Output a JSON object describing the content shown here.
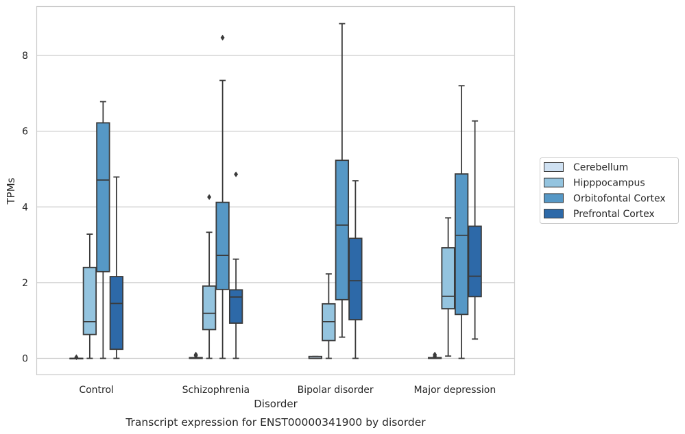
{
  "chart_data": {
    "type": "box",
    "caption": "Transcript expression for ENST00000341900 by disorder",
    "xlabel": "Disorder",
    "ylabel": "TPMs",
    "ylim": [
      -0.45,
      9.3
    ],
    "yticks": [
      0,
      2,
      4,
      6,
      8
    ],
    "grid": "horizontal",
    "legend_position": "right",
    "categories": [
      "Control",
      "Schizophrenia",
      "Bipolar disorder",
      "Major depression"
    ],
    "series": [
      {
        "name": "Cerebellum",
        "color": "#cfe1f2",
        "boxes": [
          {
            "whislo": 0,
            "q1": 0,
            "med": 0,
            "q3": 0,
            "whishi": 0,
            "fliers": [
              0.03
            ]
          },
          {
            "whislo": 0,
            "q1": 0,
            "med": 0,
            "q3": 0.02,
            "whishi": 0.02,
            "fliers": [
              0.07,
              0.1
            ]
          },
          {
            "whislo": 0,
            "q1": 0,
            "med": 0,
            "q3": 0.05,
            "whishi": 0.05,
            "fliers": []
          },
          {
            "whislo": 0,
            "q1": 0,
            "med": 0,
            "q3": 0.02,
            "whishi": 0.02,
            "fliers": [
              0.06,
              0.1
            ]
          }
        ]
      },
      {
        "name": "Hipppocampus",
        "color": "#94c4df",
        "boxes": [
          {
            "whislo": 0,
            "q1": 0.63,
            "med": 0.97,
            "q3": 2.4,
            "whishi": 3.28,
            "fliers": []
          },
          {
            "whislo": 0,
            "q1": 0.76,
            "med": 1.19,
            "q3": 1.91,
            "whishi": 3.33,
            "fliers": [
              4.26
            ]
          },
          {
            "whislo": 0,
            "q1": 0.47,
            "med": 0.97,
            "q3": 1.44,
            "whishi": 2.23,
            "fliers": []
          },
          {
            "whislo": 0.06,
            "q1": 1.31,
            "med": 1.64,
            "q3": 2.92,
            "whishi": 3.71,
            "fliers": []
          }
        ]
      },
      {
        "name": "Orbitofontal Cortex",
        "color": "#5698c6",
        "boxes": [
          {
            "whislo": 0,
            "q1": 2.29,
            "med": 4.71,
            "q3": 6.22,
            "whishi": 6.78,
            "fliers": []
          },
          {
            "whislo": 0,
            "q1": 1.82,
            "med": 2.72,
            "q3": 4.12,
            "whishi": 7.34,
            "fliers": [
              8.47
            ]
          },
          {
            "whislo": 0.56,
            "q1": 1.55,
            "med": 3.52,
            "q3": 5.23,
            "whishi": 8.84,
            "fliers": []
          },
          {
            "whislo": 0,
            "q1": 1.16,
            "med": 3.25,
            "q3": 4.87,
            "whishi": 7.2,
            "fliers": []
          }
        ]
      },
      {
        "name": "Prefrontal Cortex",
        "color": "#2d69a8",
        "boxes": [
          {
            "whislo": 0,
            "q1": 0.24,
            "med": 1.45,
            "q3": 2.16,
            "whishi": 4.79,
            "fliers": []
          },
          {
            "whislo": 0,
            "q1": 0.93,
            "med": 1.62,
            "q3": 1.81,
            "whishi": 2.62,
            "fliers": [
              4.86
            ]
          },
          {
            "whislo": 0,
            "q1": 1.02,
            "med": 2.05,
            "q3": 3.17,
            "whishi": 4.69,
            "fliers": []
          },
          {
            "whislo": 0.51,
            "q1": 1.63,
            "med": 2.17,
            "q3": 3.49,
            "whishi": 6.27,
            "fliers": []
          }
        ]
      }
    ]
  }
}
